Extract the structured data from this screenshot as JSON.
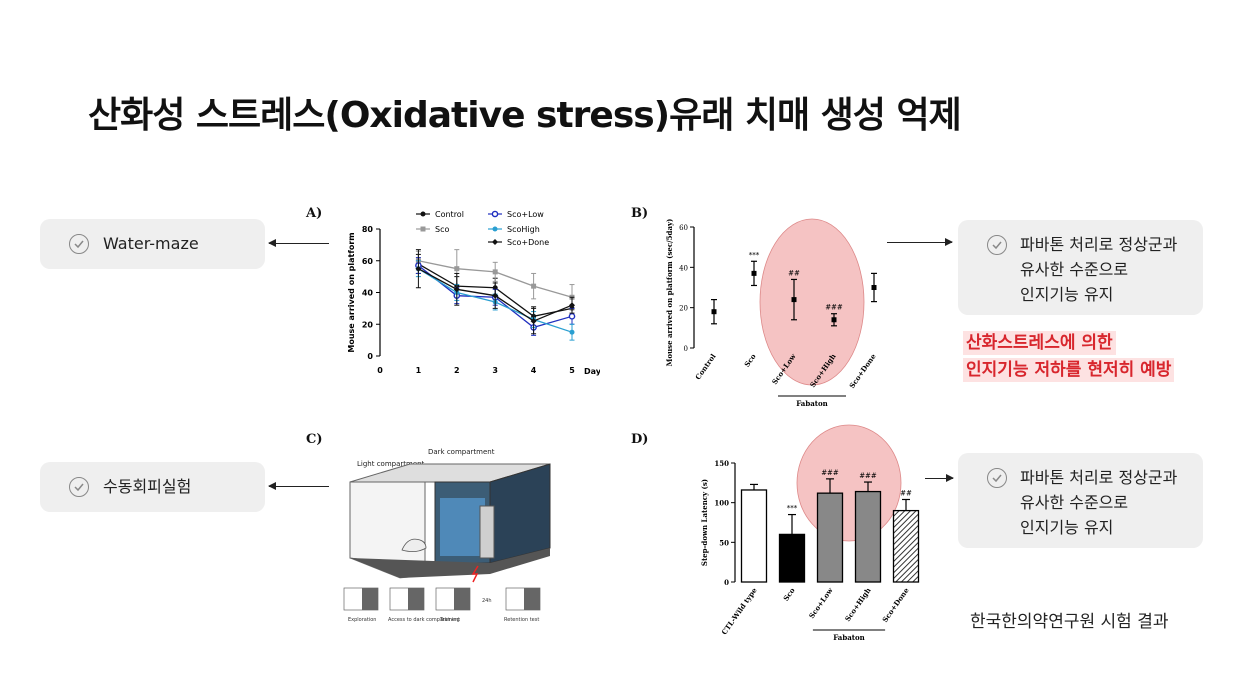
{
  "title": "산화성 스트레스(Oxidative stress)유래 치매 생성 억제",
  "left_boxes": [
    {
      "label": "Water-maze"
    },
    {
      "label": "수동회피실험"
    }
  ],
  "right_boxes": [
    {
      "lines": [
        "파바톤 처리로 정상군과",
        "유사한 수준으로",
        "인지기능 유지"
      ]
    },
    {
      "lines": [
        "파바톤 처리로 정상군과",
        "유사한 수준으로",
        "인지기능 유지"
      ]
    }
  ],
  "highlight_lines": [
    "산화스트레스에 의한",
    "인지기능 저하를 현저히 예방"
  ],
  "source": "한국한의약연구원 시험 결과",
  "panel_labels": {
    "a": "A)",
    "b": "B)",
    "c": "C)",
    "d": "D)"
  },
  "diagram_c": {
    "light_label": "Light compartment",
    "dark_label": "Dark compartment",
    "steps": [
      "Exploration",
      "Access to dark compartment",
      "Training",
      "24h",
      "Retention test"
    ]
  },
  "colors": {
    "highlight_bg": "#fde2e2",
    "highlight_text": "#d8262d",
    "ellipse": "#f2b4b4",
    "box_bg": "#efefef"
  },
  "chart_data": [
    {
      "type": "line",
      "ylabel": "Mouse arrived on platform",
      "xlabel": "Day",
      "x": [
        1,
        2,
        3,
        4,
        5
      ],
      "xticks": [
        "0",
        "1",
        "2",
        "3",
        "4",
        "5"
      ],
      "ylim": [
        0,
        80
      ],
      "yticks": [
        "0",
        "20",
        "40",
        "60",
        "80"
      ],
      "legend_position": "top",
      "series": [
        {
          "name": "Control",
          "values": [
            58,
            44,
            43,
            25,
            30
          ],
          "err": [
            6,
            6,
            6,
            6,
            6
          ],
          "color": "#111111",
          "marker": "circle"
        },
        {
          "name": "Sco",
          "values": [
            60,
            55,
            53,
            44,
            37
          ],
          "err": [
            6,
            12,
            6,
            8,
            8
          ],
          "color": "#999999",
          "marker": "square"
        },
        {
          "name": "Sco+Low",
          "values": [
            57,
            38,
            37,
            18,
            25
          ],
          "err": [
            5,
            5,
            5,
            5,
            5
          ],
          "color": "#1f2fbf",
          "marker": "open-circle"
        },
        {
          "name": "ScoHigh",
          "values": [
            55,
            40,
            34,
            23,
            15
          ],
          "err": [
            5,
            5,
            5,
            5,
            5
          ],
          "color": "#2a9fd1",
          "marker": "circle"
        },
        {
          "name": "Sco+Done",
          "values": [
            55,
            42,
            38,
            22,
            32
          ],
          "err": [
            12,
            10,
            8,
            8,
            5
          ],
          "color": "#111111",
          "marker": "diamond"
        }
      ]
    },
    {
      "type": "scatter",
      "ylabel": "Mouse arrived on platform (sec/5day)",
      "categories": [
        "Control",
        "Sco",
        "Sco+Low",
        "Sco+High",
        "Sco+Done"
      ],
      "values": [
        18,
        37,
        24,
        14,
        30
      ],
      "err": [
        6,
        6,
        10,
        3,
        7
      ],
      "annotations": [
        "",
        "***",
        "##",
        "###",
        ""
      ],
      "ylim": [
        0,
        60
      ],
      "yticks": [
        "0",
        "20",
        "40",
        "60"
      ],
      "group_label": "Fabaton"
    },
    {
      "type": "bar",
      "ylabel": "Step-down Latency (s)",
      "categories": [
        "CTL-Wild type",
        "Sco",
        "Sco+Low",
        "Sco+High",
        "Sco+Done"
      ],
      "values": [
        116,
        60,
        112,
        114,
        90
      ],
      "err": [
        7,
        25,
        18,
        12,
        14
      ],
      "annotations": [
        "",
        "***",
        "###",
        "###",
        "##"
      ],
      "fills": [
        "white",
        "black",
        "gray",
        "gray",
        "hatched"
      ],
      "ylim": [
        0,
        150
      ],
      "yticks": [
        "0",
        "50",
        "100",
        "150"
      ],
      "group_label": "Fabaton"
    }
  ]
}
